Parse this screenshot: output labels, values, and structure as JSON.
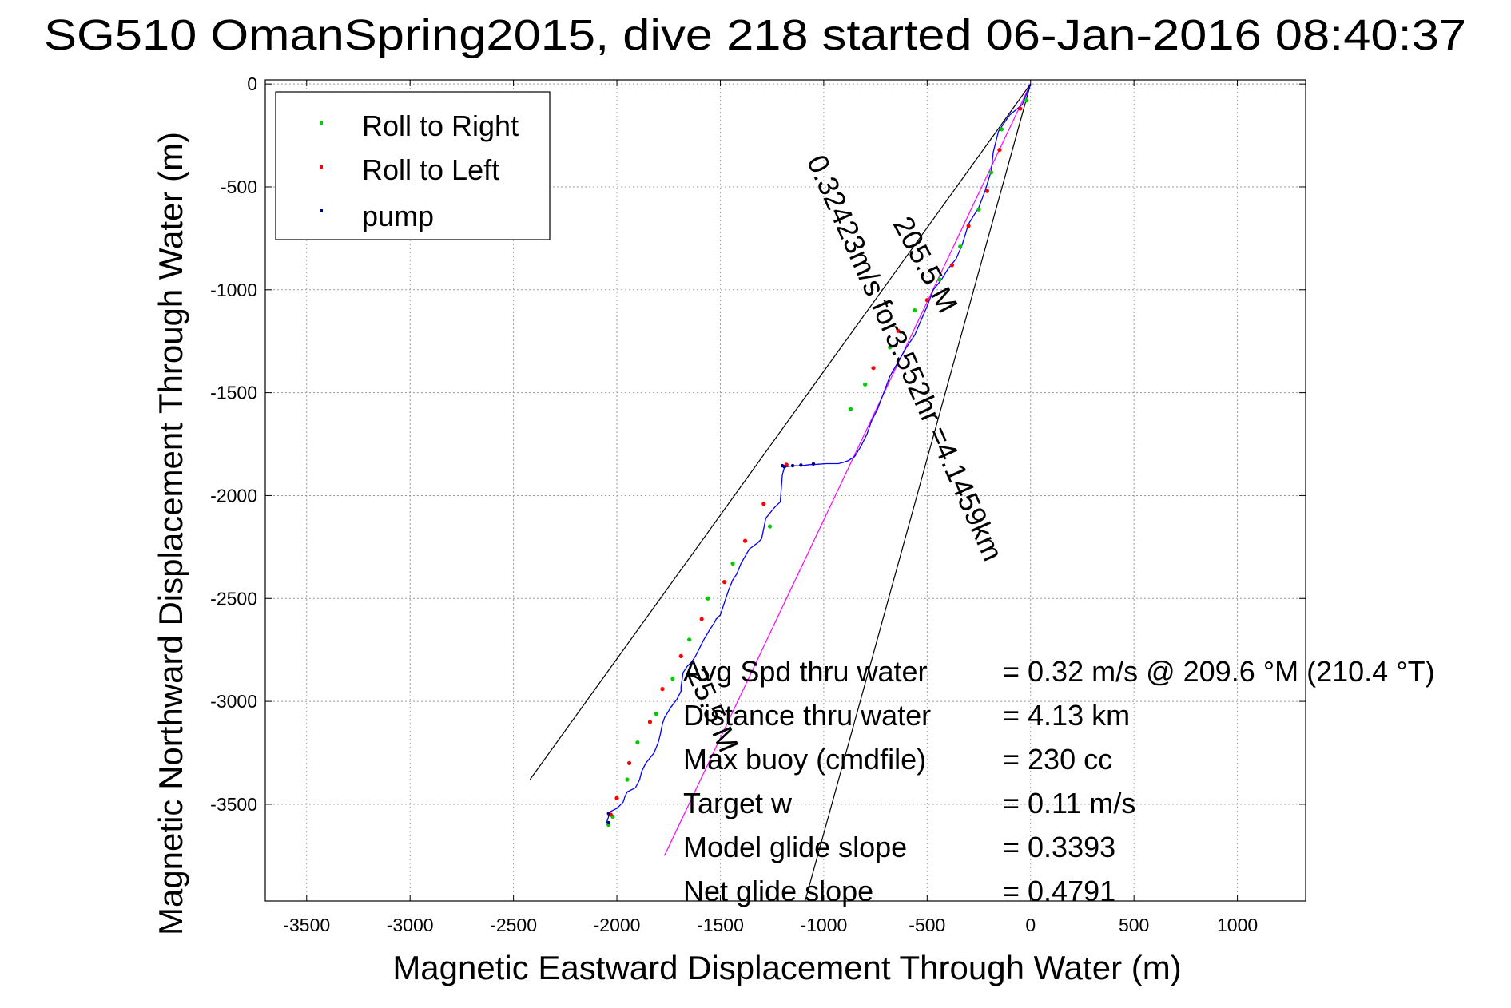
{
  "chart_data": {
    "type": "scatter",
    "title": "SG510 OmanSpring2015, dive 218 started 06-Jan-2016 08:40:37",
    "xlabel": "Magnetic Eastward Displacement Through Water (m)",
    "ylabel": "Magnetic Northward Displacement Through Water (m)",
    "xlim": [
      -3700,
      1330
    ],
    "ylim": [
      -3970,
      20
    ],
    "xticks": [
      -3500,
      -3000,
      -2500,
      -2000,
      -1500,
      -1000,
      -500,
      0,
      500,
      1000
    ],
    "yticks": [
      0,
      -500,
      -1000,
      -1500,
      -2000,
      -2500,
      -3000,
      -3500
    ],
    "grid": true,
    "legend_position": "top-left",
    "legend": [
      {
        "label": "Roll to Right",
        "color": "#00cc00"
      },
      {
        "label": "Roll to Left",
        "color": "#ff0000"
      },
      {
        "label": "pump",
        "color": "#000080"
      }
    ],
    "track": {
      "name": "glider track",
      "color": "#0000ff",
      "x": [
        0,
        -40,
        -100,
        -135,
        -155,
        -180,
        -190,
        -220,
        -250,
        -300,
        -330,
        -360,
        -400,
        -430,
        -470,
        -500,
        -530,
        -560,
        -600,
        -640,
        -680,
        -710,
        -740,
        -770,
        -790,
        -820,
        -850,
        -880,
        -910,
        -930,
        -960,
        -990,
        -1030,
        -1070,
        -1110,
        -1150,
        -1190,
        -1200,
        -1210,
        -1240,
        -1280,
        -1290,
        -1300,
        -1320,
        -1360,
        -1400,
        -1420,
        -1440,
        -1460,
        -1480,
        -1500,
        -1520,
        -1530,
        -1550,
        -1580,
        -1620,
        -1640,
        -1660,
        -1680,
        -1690,
        -1690,
        -1710,
        -1740,
        -1770,
        -1780,
        -1790,
        -1800,
        -1820,
        -1860,
        -1880,
        -1890,
        -1910,
        -1950,
        -1960,
        -1970,
        -2000,
        -2020,
        -2040,
        -2040,
        -2050,
        -2040
      ],
      "y": [
        0,
        -100,
        -150,
        -200,
        -230,
        -330,
        -420,
        -520,
        -600,
        -680,
        -780,
        -850,
        -900,
        -950,
        -1000,
        -1080,
        -1150,
        -1220,
        -1280,
        -1350,
        -1420,
        -1500,
        -1580,
        -1640,
        -1700,
        -1760,
        -1810,
        -1830,
        -1840,
        -1845,
        -1845,
        -1845,
        -1848,
        -1850,
        -1855,
        -1855,
        -1862,
        -1900,
        -2030,
        -2060,
        -2110,
        -2160,
        -2210,
        -2230,
        -2260,
        -2330,
        -2380,
        -2410,
        -2460,
        -2520,
        -2580,
        -2600,
        -2620,
        -2650,
        -2700,
        -2780,
        -2810,
        -2830,
        -2860,
        -2930,
        -2950,
        -2990,
        -3030,
        -3080,
        -3110,
        -3160,
        -3200,
        -3250,
        -3300,
        -3340,
        -3380,
        -3420,
        -3440,
        -3460,
        -3490,
        -3520,
        -3530,
        -3540,
        -3560,
        -3590,
        -3600
      ]
    },
    "roll_right_points": {
      "x": [
        -20,
        -140,
        -190,
        -250,
        -340,
        -440,
        -560,
        -680,
        -800,
        -870,
        -1260,
        -1440,
        -1560,
        -1650,
        -1730,
        -1810,
        -1900,
        -1950,
        -2020,
        -2040
      ],
      "y": [
        -80,
        -220,
        -430,
        -610,
        -790,
        -950,
        -1100,
        -1280,
        -1460,
        -1580,
        -2150,
        -2330,
        -2500,
        -2700,
        -2890,
        -3060,
        -3200,
        -3380,
        -3560,
        -3600
      ]
    },
    "roll_left_points": {
      "x": [
        -50,
        -150,
        -210,
        -300,
        -380,
        -500,
        -640,
        -760,
        -1180,
        -1290,
        -1380,
        -1480,
        -1590,
        -1690,
        -1780,
        -1840,
        -1940,
        -2000,
        -2030
      ],
      "y": [
        -120,
        -320,
        -520,
        -690,
        -880,
        -1050,
        -1200,
        -1380,
        -1850,
        -2040,
        -2220,
        -2420,
        -2600,
        -2780,
        -2940,
        -3100,
        -3300,
        -3470,
        -3550
      ]
    },
    "pump_points": {
      "x": [
        -1050,
        -1110,
        -1150,
        -1190,
        -1200,
        -2040,
        -2040
      ],
      "y": [
        -1846,
        -1852,
        -1855,
        -1860,
        -1855,
        -3545,
        -3590
      ]
    },
    "reference_lines": [
      {
        "x": [
          0,
          -1770
        ],
        "y": [
          0,
          -3750
        ],
        "color": "#ff00ff"
      },
      {
        "x": [
          0,
          -2420
        ],
        "y": [
          0,
          -3380
        ],
        "color": "#000000"
      },
      {
        "x": [
          0,
          -1090
        ],
        "y": [
          0,
          -3970
        ],
        "color": "#000000"
      }
    ],
    "annotations": [
      {
        "text": "205.5 M",
        "x": -550,
        "y": -900,
        "angle": 62
      },
      {
        "text": "0.32423m/s for3.552hr =4.1459km",
        "x": -650,
        "y": -1350,
        "angle": 66
      },
      {
        "text": "25.5 M",
        "x": -1580,
        "y": -3060,
        "angle": 67
      }
    ],
    "stats": [
      {
        "label": "Avg Spd thru water",
        "value": "=  0.32 m/s @ 209.6 °M (210.4 °T)"
      },
      {
        "label": "Distance thru water",
        "value": "=  4.13 km"
      },
      {
        "label": "Max buoy (cmdfile)",
        "value": "= 230 cc"
      },
      {
        "label": "Target w",
        "value": "= 0.11 m/s"
      },
      {
        "label": "Model glide slope",
        "value": "= 0.3393"
      },
      {
        "label": "Net glide slope",
        "value": "= 0.4791"
      }
    ]
  }
}
